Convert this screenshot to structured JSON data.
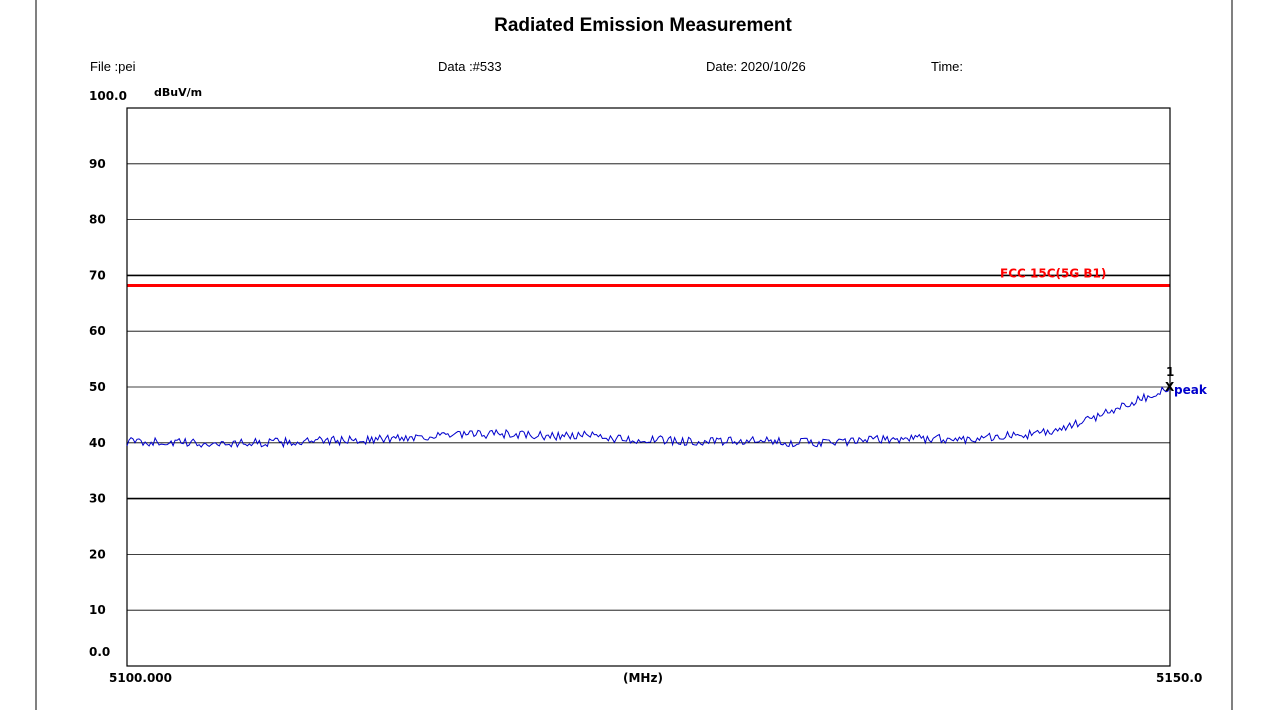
{
  "header": {
    "title": "Radiated Emission Measurement",
    "file": "File :pei",
    "data": "Data :#533",
    "date": "Date: 2020/10/26",
    "time": "Time:"
  },
  "chart_data": {
    "type": "line",
    "title": "Radiated Emission Measurement",
    "ylabel": "dBuV/m",
    "xlabel": "(MHz)",
    "xlim": [
      5100.0,
      5150.0
    ],
    "ylim": [
      0,
      100
    ],
    "y_ticks": [
      "0.0",
      "10",
      "20",
      "30",
      "40",
      "50",
      "60",
      "70",
      "80",
      "90",
      "100.0"
    ],
    "x_tick_labels": [
      "5100.000",
      "(MHz)",
      "5150.0"
    ],
    "grid": "horizontal",
    "reference_lines": [
      {
        "y": 70,
        "color": "#000000"
      },
      {
        "y": 30,
        "color": "#000000"
      }
    ],
    "limit_line": {
      "name": "FCC 15C(5G B1)",
      "y": 68.2,
      "color": "#ff0000"
    },
    "series": [
      {
        "color": "#0000cc",
        "x": [
          5100,
          5102,
          5104,
          5106,
          5108,
          5110,
          5112,
          5114,
          5116,
          5118,
          5120,
          5122,
          5124,
          5126,
          5128,
          5130,
          5132,
          5134,
          5136,
          5138,
          5140,
          5141,
          5142,
          5143,
          5144,
          5145,
          5146,
          5147,
          5148,
          5149,
          5150
        ],
        "values": [
          40.2,
          40.1,
          39.8,
          40.0,
          40.1,
          40.4,
          40.6,
          41.1,
          41.4,
          41.6,
          41.2,
          41.3,
          40.6,
          40.4,
          40.2,
          40.3,
          40.1,
          40.0,
          40.6,
          40.8,
          40.6,
          41.0,
          41.2,
          41.4,
          41.8,
          42.6,
          44.0,
          45.5,
          47.1,
          48.4,
          50.0
        ]
      }
    ],
    "annotations": [
      {
        "text": "1",
        "x": 5150.0,
        "y": 50.0
      },
      {
        "text": "X",
        "x": 5150.0,
        "y": 50.0
      },
      {
        "text": "peak",
        "x": 5150.0,
        "y": 50.0,
        "color": "#0000cc"
      }
    ]
  }
}
